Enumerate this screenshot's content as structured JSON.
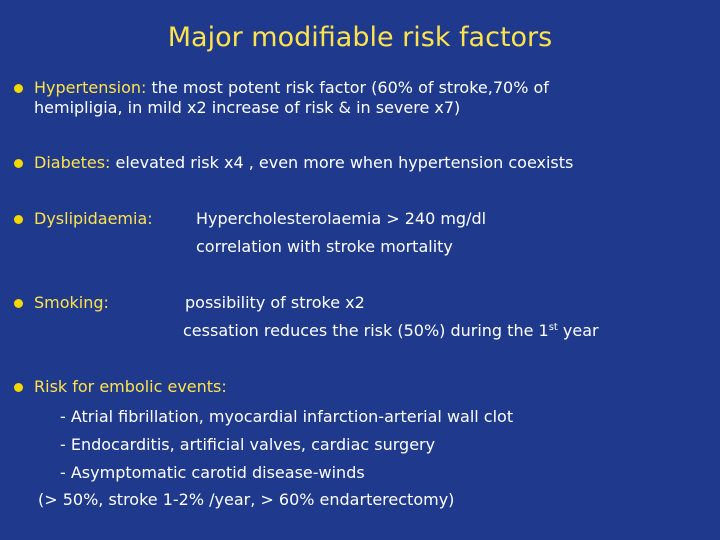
{
  "title": "Major modifiable risk factors",
  "accent_color": "#ffe34d",
  "background_color": "#1f3a8c",
  "bullets": [
    {
      "label": "Hypertension:",
      "text_line1": "the most potent risk factor (60% of stroke,70% of",
      "text_line2": "hemipligia, in mild x2 increase of risk & in severe x7)"
    },
    {
      "label": "Diabetes:",
      "text": "elevated risk x4 , even more when hypertension coexists"
    },
    {
      "label": "Dyslipidaemia:",
      "line1": "Hypercholesterolaemia > 240 mg/dl",
      "line2": "correlation with stroke mortality"
    },
    {
      "label": "Smoking:",
      "line1": "possibility of stroke x2",
      "line2_before": "cessation reduces the risk (50%) during the 1",
      "line2_sup": "st",
      "line2_after": " year"
    },
    {
      "label": "Risk for embolic events:",
      "sub_items": [
        "- Atrial fibrillation, myocardial infarction-arterial wall clot",
        "- Endocarditis, artificial valves, cardiac surgery",
        "- Asymptomatic carotid disease-winds"
      ],
      "note": "(> 50%, stroke 1-2% /year, > 60% endarterectomy)"
    }
  ]
}
